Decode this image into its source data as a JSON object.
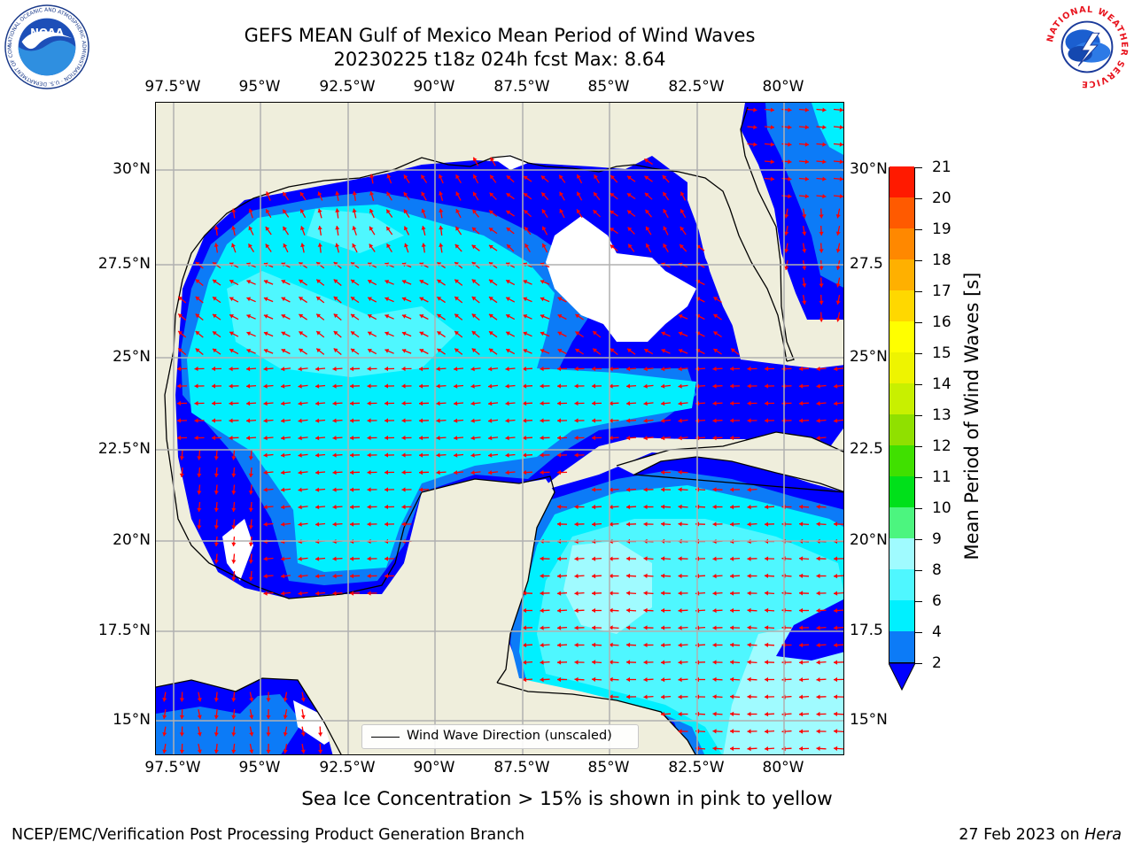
{
  "title": {
    "line1": "GEFS MEAN Gulf of Mexico Mean Period of Wind Waves",
    "line2": "20230225 t18z 024h fcst   Max: 8.64"
  },
  "axes": {
    "lon_labels": [
      "97.5°W",
      "95°W",
      "92.5°W",
      "90°W",
      "87.5°W",
      "85°W",
      "82.5°W",
      "80°W"
    ],
    "lat_labels": [
      "30°N",
      "27.5°N",
      "25°N",
      "22.5°N",
      "20°N",
      "17.5°N",
      "15°N"
    ],
    "lat_labels_right": [
      "30°N",
      "27.5",
      "25°N",
      "22.5",
      "20°N",
      "17.5",
      "15°N"
    ],
    "lon_range": [
      -98,
      -78.25
    ],
    "lat_range": [
      14,
      31.75
    ],
    "grid": true
  },
  "legend": {
    "label": "Wind Wave Direction (unscaled)"
  },
  "colorbar": {
    "title": "Mean Period of Wind Waves [s]",
    "ticks": [
      "2",
      "4",
      "6",
      "8",
      "9",
      "10",
      "11",
      "12",
      "13",
      "14",
      "15",
      "16",
      "17",
      "18",
      "19",
      "20",
      "21"
    ],
    "colors": [
      "#0c7bf7",
      "#00f0ff",
      "#4ff7ff",
      "#a0fbff",
      "#4cf57f",
      "#00e01a",
      "#40e000",
      "#90e000",
      "#c8f000",
      "#eef400",
      "#ffff00",
      "#ffd800",
      "#ffb000",
      "#ff8800",
      "#ff5a00",
      "#ff1a00"
    ],
    "under_color": "#0000ff"
  },
  "colors": {
    "land": "#efeedc",
    "no_data": "#ffffff",
    "level_2": "#0000ff",
    "level_4": "#0c7bf7",
    "level_6": "#00f0ff",
    "level_8": "#4ff7ff",
    "level_9": "#a0fbff",
    "arrow": "#ff0000"
  },
  "chart_data": {
    "type": "heatmap",
    "variable": "Mean Period of Wind Waves",
    "units": "s",
    "max": 8.64,
    "lon_range": [
      -98,
      -78.25
    ],
    "lat_range": [
      14,
      31.75
    ],
    "levels": [
      2,
      4,
      6,
      8,
      9,
      10,
      11,
      12,
      13,
      14,
      15,
      16,
      17,
      18,
      19,
      20,
      21
    ],
    "overlay": "wind wave direction arrows (unscaled)"
  },
  "note": "Sea Ice Concentration > 15% is shown in pink to yellow",
  "footer": {
    "left": "NCEP/EMC/Verification Post Processing Product Generation Branch",
    "right_date": "27 Feb 2023 on ",
    "right_host": "Hera"
  },
  "logos": {
    "noaa": "NOAA",
    "noaa_ring": "NATIONAL OCEANIC AND ATMOSPHERIC ADMINISTRATION · U.S. DEPARTMENT OF COMMERCE",
    "nws_ring": "NATIONAL WEATHER SERVICE"
  }
}
